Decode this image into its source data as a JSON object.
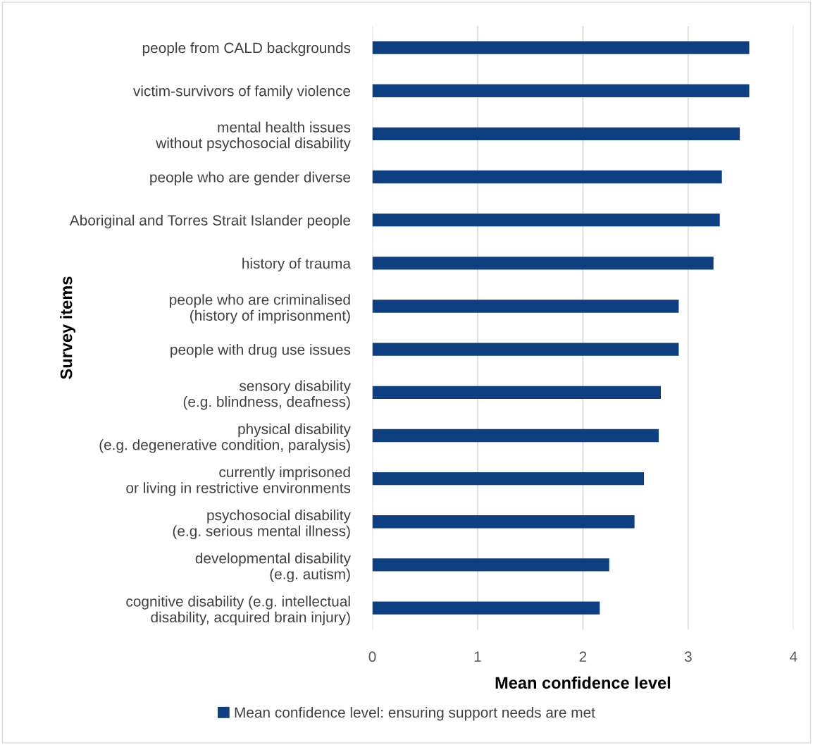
{
  "chart_data": {
    "type": "bar",
    "orientation": "horizontal",
    "xlabel": "Mean confidence level",
    "ylabel": "Survey items",
    "categories": [
      "people from CALD backgrounds",
      "victim-survivors of family violence",
      "mental health issues\nwithout psychosocial disability",
      "people who are gender diverse",
      "Aboriginal and Torres Strait Islander people",
      "history of trauma",
      "people who are criminalised\n(history of imprisonment)",
      "people with drug use issues",
      "sensory disability\n(e.g. blindness, deafness)",
      "physical disability\n(e.g. degenerative condition, paralysis)",
      "currently imprisoned\nor living in restrictive environments",
      "psychosocial disability\n(e.g. serious mental illness)",
      "developmental disability\n(e.g. autism)",
      "cognitive disability (e.g. intellectual\ndisability, acquired brain injury)"
    ],
    "series": [
      {
        "name": "Mean confidence level: ensuring support needs are met",
        "color": "#0e3f80",
        "values": [
          3.58,
          3.58,
          3.49,
          3.32,
          3.3,
          3.24,
          2.91,
          2.91,
          2.74,
          2.72,
          2.58,
          2.49,
          2.25,
          2.16
        ]
      }
    ],
    "xlim": [
      0,
      4
    ],
    "xticks": [
      0,
      1,
      2,
      3,
      4
    ],
    "grid": "x",
    "legend": "bottom"
  }
}
